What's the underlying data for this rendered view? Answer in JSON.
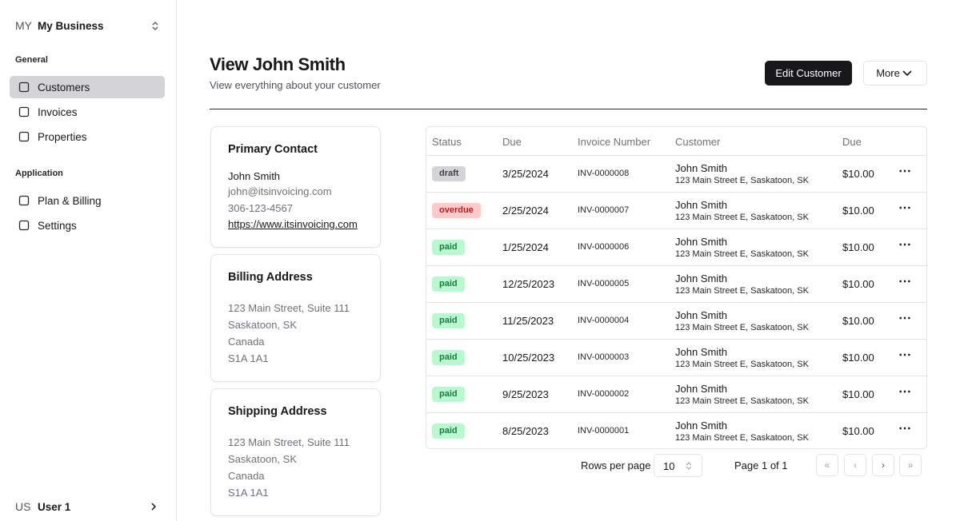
{
  "sidebar": {
    "org_avatar": "MY",
    "org_name": "My Business",
    "sections": [
      {
        "title": "General",
        "items": [
          "Customers",
          "Invoices",
          "Properties"
        ]
      },
      {
        "title": "Application",
        "items": [
          "Plan & Billing",
          "Settings"
        ]
      }
    ],
    "user_avatar": "US",
    "user_name": "User 1"
  },
  "header": {
    "title": "View John Smith",
    "subtitle": "View everything about your customer",
    "buttons": [
      "Edit Customer",
      "More"
    ]
  },
  "contact": {
    "title": "Primary Contact",
    "name": "John Smith",
    "email": "john@itsinvoicing.com",
    "phone": "306-123-4567",
    "website": "https://www.itsinvoicing.com"
  },
  "billing": {
    "title": "Billing Address",
    "lines": [
      "123 Main Street, Suite 111",
      "Saskatoon, SK",
      "Canada",
      "S1A 1A1"
    ]
  },
  "shipping": {
    "title": "Shipping Address",
    "lines": [
      "123 Main Street, Suite 111",
      "Saskatoon, SK",
      "Canada",
      "S1A 1A1"
    ]
  },
  "table": {
    "columns": [
      "Status",
      "Due",
      "Invoice Number",
      "Customer",
      "Due"
    ],
    "rows": [
      {
        "status": "draft",
        "due": "3/25/2024",
        "number": "INV-0000008",
        "customer": "John Smith",
        "address": "123 Main Street E, Saskatoon, SK",
        "amount": "$10.00"
      },
      {
        "status": "overdue",
        "due": "2/25/2024",
        "number": "INV-0000007",
        "customer": "John Smith",
        "address": "123 Main Street E, Saskatoon, SK",
        "amount": "$10.00"
      },
      {
        "status": "paid",
        "due": "1/25/2024",
        "number": "INV-0000006",
        "customer": "John Smith",
        "address": "123 Main Street E, Saskatoon, SK",
        "amount": "$10.00"
      },
      {
        "status": "paid",
        "due": "12/25/2023",
        "number": "INV-0000005",
        "customer": "John Smith",
        "address": "123 Main Street E, Saskatoon, SK",
        "amount": "$10.00"
      },
      {
        "status": "paid",
        "due": "11/25/2023",
        "number": "INV-0000004",
        "customer": "John Smith",
        "address": "123 Main Street E, Saskatoon, SK",
        "amount": "$10.00"
      },
      {
        "status": "paid",
        "due": "10/25/2023",
        "number": "INV-0000003",
        "customer": "John Smith",
        "address": "123 Main Street E, Saskatoon, SK",
        "amount": "$10.00"
      },
      {
        "status": "paid",
        "due": "9/25/2023",
        "number": "INV-0000002",
        "customer": "John Smith",
        "address": "123 Main Street E, Saskatoon, SK",
        "amount": "$10.00"
      },
      {
        "status": "paid",
        "due": "8/25/2023",
        "number": "INV-0000001",
        "customer": "John Smith",
        "address": "123 Main Street E, Saskatoon, SK",
        "amount": "$10.00"
      }
    ]
  },
  "pagination": {
    "rows_label": "Rows per page",
    "rows_value": "10",
    "page_label": "Page 1 of 1"
  }
}
